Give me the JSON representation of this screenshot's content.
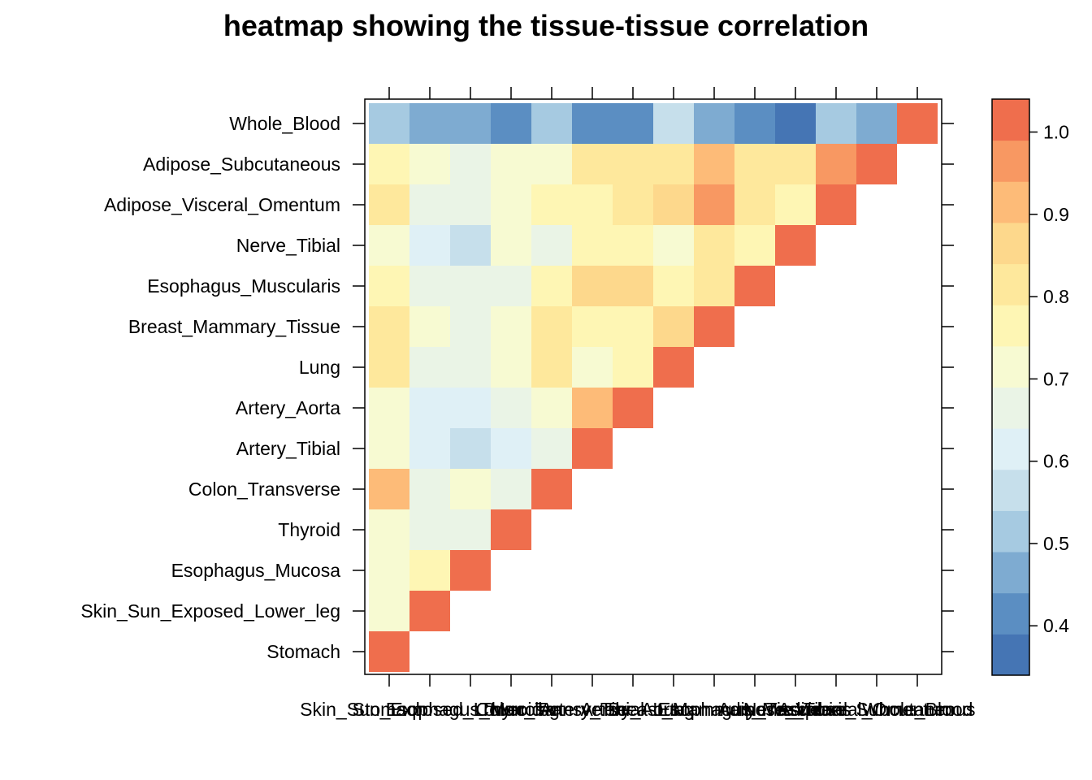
{
  "chart_data": {
    "type": "heatmap",
    "title": "heatmap showing the tissue-tissue correlation",
    "xlabel": "",
    "ylabel": "",
    "tissues": [
      "Stomach",
      "Skin_Sun_Exposed_Lower_leg",
      "Esophagus_Mucosa",
      "Thyroid",
      "Colon_Transverse",
      "Artery_Tibial",
      "Artery_Aorta",
      "Lung",
      "Breast_Mammary_Tissue",
      "Esophagus_Muscularis",
      "Nerve_Tibial",
      "Adipose_Visceral_Omentum",
      "Adipose_Subcutaneous",
      "Whole_Blood"
    ],
    "matrix_lower_triangle": [
      [
        1.0
      ],
      [
        0.72,
        1.0
      ],
      [
        0.72,
        0.77,
        1.0
      ],
      [
        0.72,
        0.64,
        0.64,
        1.0
      ],
      [
        0.92,
        0.68,
        0.73,
        0.67,
        1.0
      ],
      [
        0.72,
        0.63,
        0.58,
        0.63,
        0.67,
        1.0
      ],
      [
        0.72,
        0.63,
        0.63,
        0.67,
        0.72,
        0.92,
        1.0
      ],
      [
        0.8,
        0.68,
        0.68,
        0.72,
        0.8,
        0.72,
        0.77,
        1.0
      ],
      [
        0.8,
        0.72,
        0.68,
        0.72,
        0.8,
        0.77,
        0.77,
        0.85,
        1.0
      ],
      [
        0.77,
        0.64,
        0.64,
        0.67,
        0.77,
        0.85,
        0.85,
        0.77,
        0.8,
        1.0
      ],
      [
        0.72,
        0.63,
        0.58,
        0.72,
        0.67,
        0.77,
        0.77,
        0.72,
        0.8,
        0.77,
        1.0
      ],
      [
        0.8,
        0.68,
        0.68,
        0.72,
        0.77,
        0.77,
        0.8,
        0.85,
        0.95,
        0.8,
        0.77,
        1.0
      ],
      [
        0.77,
        0.72,
        0.68,
        0.72,
        0.72,
        0.8,
        0.8,
        0.8,
        0.92,
        0.8,
        0.8,
        0.95,
        1.0
      ],
      [
        0.52,
        0.47,
        0.47,
        0.42,
        0.52,
        0.42,
        0.42,
        0.55,
        0.47,
        0.42,
        0.37,
        0.52,
        0.47,
        1.0
      ]
    ],
    "colorbar": {
      "range": [
        0.34,
        1.04
      ],
      "breaks": [
        0.34,
        0.39,
        0.44,
        0.49,
        0.54,
        0.59,
        0.64,
        0.69,
        0.74,
        0.79,
        0.84,
        0.89,
        0.94,
        0.99,
        1.04
      ],
      "colors": [
        "#4575b4",
        "#5b8ec2",
        "#7eabd1",
        "#a6cae1",
        "#c6dfeb",
        "#dff0f6",
        "#eaf4e6",
        "#f7fad2",
        "#fef6b4",
        "#fee89c",
        "#fdd88c",
        "#fdbb78",
        "#f89862",
        "#ef6e4d",
        "#e34a33",
        "#d73027"
      ],
      "tick_labels": [
        "0.4",
        "0.5",
        "0.6",
        "0.7",
        "0.8",
        "0.9",
        "1.0"
      ],
      "tick_values": [
        0.4,
        0.5,
        0.6,
        0.7,
        0.8,
        0.9,
        1.0
      ]
    }
  }
}
